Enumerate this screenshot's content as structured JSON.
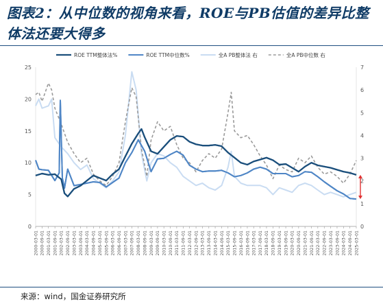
{
  "figure": {
    "title": "图表2：从中位数的视角来看，ROE与PB估值的差异比整体法还要大得多",
    "source": "来源：wind，国金证券研究所"
  },
  "chart_data": {
    "type": "line",
    "title": "",
    "xlabel": "",
    "ylabel": "",
    "ylim_left": [
      0,
      25
    ],
    "ylim_right": [
      0,
      7
    ],
    "left_ticks": [
      0,
      5,
      10,
      15,
      20,
      25
    ],
    "right_ticks": [
      0,
      1,
      2,
      3,
      4,
      5,
      6,
      7
    ],
    "x_ticks": [
      "2000-03-01",
      "2000-09-01",
      "2001-03-01",
      "2001-09-01",
      "2002-03-01",
      "2002-09-01",
      "2003-03-01",
      "2003-09-01",
      "2004-03-01",
      "2004-09-01",
      "2005-03-01",
      "2005-09-01",
      "2006-03-01",
      "2006-09-01",
      "2007-03-01",
      "2007-09-01",
      "2008-03-01",
      "2008-09-01",
      "2009-03-01",
      "2009-09-01",
      "2010-03-01",
      "2010-09-01",
      "2011-03-01",
      "2011-09-01",
      "2012-03-01",
      "2012-09-01",
      "2013-03-01",
      "2013-09-01",
      "2014-03-01",
      "2014-09-01",
      "2015-03-01",
      "2015-09-01",
      "2016-03-01",
      "2016-09-01",
      "2017-03-01",
      "2017-09-01",
      "2018-03-01",
      "2018-09-01",
      "2019-03-01",
      "2019-09-01",
      "2020-03-01",
      "2020-09-01",
      "2021-03-01",
      "2021-09-01",
      "2022-03-01",
      "2022-09-01",
      "2023-03-01",
      "2023-09-01",
      "2024-03-01",
      "2024-09-01",
      "2025-03-01"
    ],
    "grid": false,
    "legend_position": "top",
    "series": [
      {
        "name": "ROE TTM整体法%",
        "axis": "left",
        "color": "#1b4f7c",
        "dash": "",
        "width": 2.2,
        "points": [
          [
            "2000-03-01",
            8.0
          ],
          [
            "2000-09-01",
            8.3
          ],
          [
            "2001-03-01",
            8.1
          ],
          [
            "2001-09-01",
            8.2
          ],
          [
            "2002-03-01",
            7.4
          ],
          [
            "2002-06-01",
            5.2
          ],
          [
            "2002-09-01",
            4.7
          ],
          [
            "2003-03-01",
            5.9
          ],
          [
            "2003-09-01",
            6.4
          ],
          [
            "2004-03-01",
            7.2
          ],
          [
            "2004-09-01",
            8.0
          ],
          [
            "2005-03-01",
            7.6
          ],
          [
            "2005-09-01",
            7.2
          ],
          [
            "2006-03-01",
            8.2
          ],
          [
            "2006-09-01",
            9.0
          ],
          [
            "2007-03-01",
            11.0
          ],
          [
            "2007-09-01",
            13.0
          ],
          [
            "2008-03-01",
            14.6
          ],
          [
            "2008-06-01",
            15.3
          ],
          [
            "2008-09-01",
            14.0
          ],
          [
            "2009-03-01",
            11.8
          ],
          [
            "2009-09-01",
            11.4
          ],
          [
            "2010-03-01",
            12.5
          ],
          [
            "2010-09-01",
            13.6
          ],
          [
            "2011-03-01",
            14.2
          ],
          [
            "2011-09-01",
            14.1
          ],
          [
            "2012-03-01",
            13.3
          ],
          [
            "2012-09-01",
            12.9
          ],
          [
            "2013-03-01",
            12.7
          ],
          [
            "2013-09-01",
            12.7
          ],
          [
            "2014-03-01",
            12.8
          ],
          [
            "2014-09-01",
            12.6
          ],
          [
            "2015-03-01",
            11.6
          ],
          [
            "2015-09-01",
            10.8
          ],
          [
            "2016-03-01",
            10.0
          ],
          [
            "2016-09-01",
            9.7
          ],
          [
            "2017-03-01",
            10.2
          ],
          [
            "2017-09-01",
            10.5
          ],
          [
            "2018-03-01",
            10.8
          ],
          [
            "2018-09-01",
            10.4
          ],
          [
            "2019-03-01",
            9.7
          ],
          [
            "2019-09-01",
            9.8
          ],
          [
            "2020-03-01",
            9.2
          ],
          [
            "2020-09-01",
            8.6
          ],
          [
            "2021-03-01",
            9.4
          ],
          [
            "2021-09-01",
            10.0
          ],
          [
            "2022-03-01",
            9.6
          ],
          [
            "2022-09-01",
            9.4
          ],
          [
            "2023-03-01",
            9.2
          ],
          [
            "2023-09-01",
            8.9
          ],
          [
            "2024-03-01",
            8.6
          ],
          [
            "2024-09-01",
            8.4
          ],
          [
            "2025-03-01",
            8.1
          ]
        ]
      },
      {
        "name": "ROE TTM中位数%",
        "axis": "left",
        "color": "#4f86c6",
        "dash": "",
        "width": 2,
        "points": [
          [
            "2000-03-01",
            10.4
          ],
          [
            "2000-06-01",
            9.0
          ],
          [
            "2000-09-01",
            8.9
          ],
          [
            "2001-03-01",
            8.8
          ],
          [
            "2001-09-01",
            7.2
          ],
          [
            "2002-01-01",
            8.4
          ],
          [
            "2002-02-01",
            19.8
          ],
          [
            "2002-04-01",
            7.6
          ],
          [
            "2002-06-01",
            6.0
          ],
          [
            "2002-09-01",
            9.0
          ],
          [
            "2003-03-01",
            6.4
          ],
          [
            "2003-09-01",
            6.6
          ],
          [
            "2004-03-01",
            6.8
          ],
          [
            "2004-09-01",
            7.0
          ],
          [
            "2005-03-01",
            6.9
          ],
          [
            "2005-09-01",
            6.2
          ],
          [
            "2006-03-01",
            6.9
          ],
          [
            "2006-09-01",
            7.6
          ],
          [
            "2007-03-01",
            10.0
          ],
          [
            "2007-09-01",
            11.6
          ],
          [
            "2008-03-01",
            13.6
          ],
          [
            "2008-09-01",
            11.8
          ],
          [
            "2009-03-01",
            8.6
          ],
          [
            "2009-09-01",
            10.6
          ],
          [
            "2010-03-01",
            10.7
          ],
          [
            "2010-09-01",
            11.3
          ],
          [
            "2011-03-01",
            11.8
          ],
          [
            "2011-09-01",
            11.2
          ],
          [
            "2012-03-01",
            9.6
          ],
          [
            "2012-09-01",
            9.0
          ],
          [
            "2013-03-01",
            8.6
          ],
          [
            "2013-09-01",
            8.7
          ],
          [
            "2014-03-01",
            8.7
          ],
          [
            "2014-09-01",
            8.8
          ],
          [
            "2015-03-01",
            8.4
          ],
          [
            "2015-09-01",
            7.8
          ],
          [
            "2016-03-01",
            8.0
          ],
          [
            "2016-09-01",
            8.4
          ],
          [
            "2017-03-01",
            9.0
          ],
          [
            "2017-09-01",
            9.3
          ],
          [
            "2018-03-01",
            9.0
          ],
          [
            "2018-09-01",
            8.3
          ],
          [
            "2019-03-01",
            8.3
          ],
          [
            "2019-09-01",
            8.3
          ],
          [
            "2020-03-01",
            7.8
          ],
          [
            "2020-09-01",
            8.0
          ],
          [
            "2021-03-01",
            8.6
          ],
          [
            "2021-09-01",
            8.5
          ],
          [
            "2022-03-01",
            7.8
          ],
          [
            "2022-09-01",
            7.0
          ],
          [
            "2023-03-01",
            6.3
          ],
          [
            "2023-09-01",
            5.6
          ],
          [
            "2024-03-01",
            5.1
          ],
          [
            "2024-09-01",
            4.4
          ],
          [
            "2025-03-01",
            4.3
          ]
        ]
      },
      {
        "name": "全A PB整体法 右",
        "axis": "right",
        "color": "#c9dcf2",
        "dash": "",
        "width": 2,
        "points": [
          [
            "2000-03-01",
            5.3
          ],
          [
            "2000-06-01",
            5.6
          ],
          [
            "2000-09-01",
            5.2
          ],
          [
            "2001-03-01",
            5.3
          ],
          [
            "2001-06-01",
            5.6
          ],
          [
            "2001-09-01",
            3.9
          ],
          [
            "2002-03-01",
            3.5
          ],
          [
            "2002-09-01",
            3.2
          ],
          [
            "2003-03-01",
            2.8
          ],
          [
            "2003-09-01",
            2.5
          ],
          [
            "2004-03-01",
            2.7
          ],
          [
            "2004-09-01",
            2.1
          ],
          [
            "2005-03-01",
            1.9
          ],
          [
            "2005-09-01",
            1.7
          ],
          [
            "2006-03-01",
            2.0
          ],
          [
            "2006-09-01",
            2.4
          ],
          [
            "2007-03-01",
            4.0
          ],
          [
            "2007-09-01",
            6.8
          ],
          [
            "2008-01-01",
            6.0
          ],
          [
            "2008-06-01",
            3.2
          ],
          [
            "2008-11-01",
            2.0
          ],
          [
            "2009-03-01",
            2.8
          ],
          [
            "2009-09-01",
            3.2
          ],
          [
            "2010-03-01",
            3.1
          ],
          [
            "2010-09-01",
            2.8
          ],
          [
            "2011-03-01",
            2.6
          ],
          [
            "2011-09-01",
            2.2
          ],
          [
            "2012-03-01",
            2.0
          ],
          [
            "2012-09-01",
            1.8
          ],
          [
            "2013-03-01",
            1.9
          ],
          [
            "2013-09-01",
            1.7
          ],
          [
            "2014-03-01",
            1.6
          ],
          [
            "2014-09-01",
            1.8
          ],
          [
            "2015-03-01",
            2.6
          ],
          [
            "2015-06-01",
            3.3
          ],
          [
            "2015-09-01",
            2.2
          ],
          [
            "2016-03-01",
            1.9
          ],
          [
            "2016-09-01",
            1.8
          ],
          [
            "2017-03-01",
            1.8
          ],
          [
            "2017-09-01",
            1.8
          ],
          [
            "2018-03-01",
            1.7
          ],
          [
            "2018-09-01",
            1.4
          ],
          [
            "2019-03-01",
            1.7
          ],
          [
            "2019-09-01",
            1.6
          ],
          [
            "2020-03-01",
            1.5
          ],
          [
            "2020-09-01",
            1.8
          ],
          [
            "2021-03-01",
            1.9
          ],
          [
            "2021-09-01",
            1.8
          ],
          [
            "2022-03-01",
            1.6
          ],
          [
            "2022-09-01",
            1.4
          ],
          [
            "2023-03-01",
            1.5
          ],
          [
            "2023-09-01",
            1.4
          ],
          [
            "2024-03-01",
            1.3
          ],
          [
            "2024-09-01",
            1.4
          ],
          [
            "2025-03-01",
            1.5
          ]
        ]
      },
      {
        "name": "全A PB中位数 右",
        "axis": "right",
        "color": "#9a9a9a",
        "dash": "4,3",
        "width": 1.6,
        "points": [
          [
            "2000-03-01",
            5.8
          ],
          [
            "2000-06-01",
            5.9
          ],
          [
            "2000-09-01",
            5.5
          ],
          [
            "2001-03-01",
            6.3
          ],
          [
            "2001-06-01",
            6.0
          ],
          [
            "2001-09-01",
            5.2
          ],
          [
            "2002-03-01",
            4.5
          ],
          [
            "2002-09-01",
            3.7
          ],
          [
            "2003-03-01",
            3.2
          ],
          [
            "2003-09-01",
            2.8
          ],
          [
            "2004-03-01",
            3.0
          ],
          [
            "2004-09-01",
            2.3
          ],
          [
            "2005-03-01",
            2.0
          ],
          [
            "2005-09-01",
            1.8
          ],
          [
            "2006-03-01",
            2.2
          ],
          [
            "2006-09-01",
            2.8
          ],
          [
            "2007-03-01",
            4.6
          ],
          [
            "2007-09-01",
            6.1
          ],
          [
            "2008-01-01",
            5.7
          ],
          [
            "2008-06-01",
            3.4
          ],
          [
            "2008-11-01",
            2.2
          ],
          [
            "2009-03-01",
            3.8
          ],
          [
            "2009-09-01",
            4.6
          ],
          [
            "2010-03-01",
            4.2
          ],
          [
            "2010-09-01",
            4.4
          ],
          [
            "2011-03-01",
            3.6
          ],
          [
            "2011-09-01",
            3.0
          ],
          [
            "2012-03-01",
            2.8
          ],
          [
            "2012-09-01",
            2.4
          ],
          [
            "2013-03-01",
            2.9
          ],
          [
            "2013-09-01",
            3.2
          ],
          [
            "2014-03-01",
            3.0
          ],
          [
            "2014-09-01",
            3.4
          ],
          [
            "2015-03-01",
            5.0
          ],
          [
            "2015-06-01",
            5.9
          ],
          [
            "2015-09-01",
            4.2
          ],
          [
            "2016-03-01",
            3.9
          ],
          [
            "2016-09-01",
            4.0
          ],
          [
            "2017-03-01",
            3.6
          ],
          [
            "2017-09-01",
            3.1
          ],
          [
            "2018-03-01",
            2.7
          ],
          [
            "2018-09-01",
            2.1
          ],
          [
            "2019-03-01",
            2.7
          ],
          [
            "2019-09-01",
            2.5
          ],
          [
            "2020-03-01",
            2.4
          ],
          [
            "2020-09-01",
            3.0
          ],
          [
            "2021-03-01",
            2.8
          ],
          [
            "2021-09-01",
            3.1
          ],
          [
            "2022-03-01",
            2.6
          ],
          [
            "2022-09-01",
            2.3
          ],
          [
            "2023-03-01",
            2.4
          ],
          [
            "2023-09-01",
            2.2
          ],
          [
            "2024-03-01",
            1.9
          ],
          [
            "2024-09-01",
            2.3
          ],
          [
            "2025-03-01",
            2.9
          ]
        ]
      }
    ],
    "annotation": {
      "type": "double-arrow",
      "color": "#e03030",
      "x": "2025-03-01",
      "y_from": 8.1,
      "y_to": 4.3,
      "axis": "left"
    }
  }
}
